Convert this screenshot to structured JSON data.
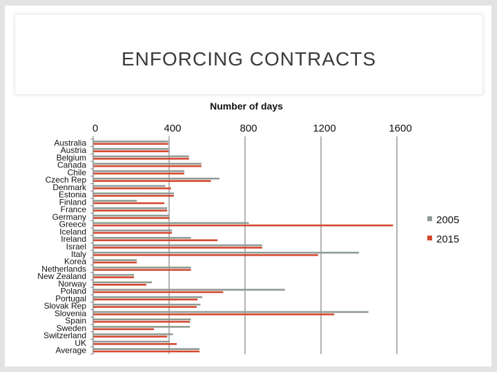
{
  "slide": {
    "title": "ENFORCING CONTRACTS"
  },
  "chart_data": {
    "type": "bar",
    "orientation": "horizontal",
    "title": "Number of days",
    "xlabel": "",
    "ylabel": "",
    "xlim": [
      0,
      1600
    ],
    "ticks": [
      0,
      400,
      800,
      1200,
      1600
    ],
    "tick_labels": [
      "0",
      "400",
      "800",
      "1200",
      "1600"
    ],
    "grid": true,
    "legend_position": "right",
    "categories": [
      "Australia",
      "Austria",
      "Belgium",
      "Canada",
      "Chile",
      "Czech Rep",
      "Denmark",
      "Estonia",
      "Finland",
      "France",
      "Germany",
      "Greece",
      "Iceland",
      "Ireland",
      "Israel",
      "Italy",
      "Korea",
      "Netherlands",
      "New Zealand",
      "Norway",
      "Poland",
      "Portugal",
      "Slovak Rep",
      "Slovenia",
      "Spain",
      "Sweden",
      "Switzerland",
      "UK",
      "Average"
    ],
    "series": [
      {
        "name": "2005",
        "color": "#8e9b94",
        "values": [
          395,
          397,
          505,
          570,
          480,
          665,
          380,
          425,
          230,
          390,
          400,
          820,
          415,
          515,
          890,
          1400,
          230,
          515,
          215,
          310,
          1010,
          575,
          565,
          1450,
          515,
          510,
          420,
          400,
          560
        ]
      },
      {
        "name": "2015",
        "color": "#d4472f",
        "values": [
          395,
          397,
          505,
          570,
          480,
          620,
          410,
          425,
          375,
          390,
          400,
          1580,
          415,
          655,
          890,
          1185,
          230,
          515,
          215,
          280,
          685,
          550,
          545,
          1270,
          510,
          320,
          390,
          440,
          560
        ]
      }
    ]
  }
}
